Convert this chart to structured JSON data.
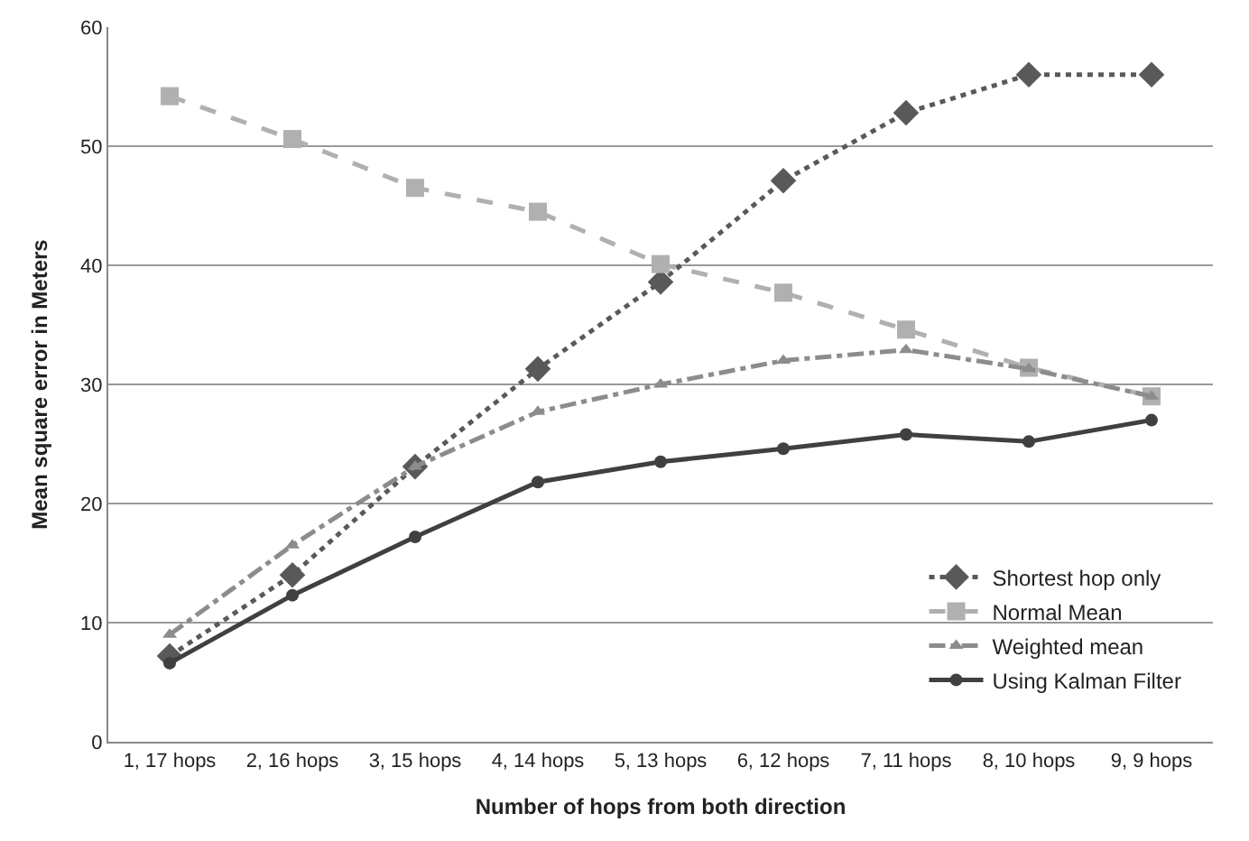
{
  "chart_data": {
    "type": "line",
    "xlabel": "Number of hops from both direction",
    "ylabel": "Mean square error in Meters",
    "categories": [
      "1, 17 hops",
      "2, 16 hops",
      "3, 15 hops",
      "4, 14 hops",
      "5, 13 hops",
      "6, 12 hops",
      "7, 11 hops",
      "8, 10 hops",
      "9, 9 hops"
    ],
    "series": [
      {
        "name": "Shortest hop only",
        "color": "#595959",
        "marker": "diamond",
        "line_style": "dotted",
        "values": [
          7.2,
          14,
          23.1,
          31.3,
          38.6,
          47.1,
          52.8,
          56,
          56
        ]
      },
      {
        "name": "Normal Mean",
        "color": "#b0b0b0",
        "marker": "square",
        "line_style": "dashed",
        "values": [
          54.2,
          50.6,
          46.5,
          44.5,
          40.1,
          37.7,
          34.6,
          31.4,
          29
        ]
      },
      {
        "name": "Weighted mean",
        "color": "#8c8c8c",
        "marker": "triangle",
        "line_style": "dashdot",
        "values": [
          9,
          16.5,
          23.1,
          27.7,
          30,
          32,
          32.9,
          31.3,
          29
        ]
      },
      {
        "name": "Using Kalman Filter",
        "color": "#404040",
        "marker": "circle",
        "line_style": "solid",
        "values": [
          6.6,
          12.3,
          17.2,
          21.8,
          23.5,
          24.6,
          25.8,
          25.2,
          27
        ]
      }
    ],
    "ylim": [
      0,
      60
    ],
    "yticks": [
      0,
      10,
      20,
      30,
      40,
      50,
      60
    ],
    "grid": "y",
    "legend": "bottom right"
  }
}
